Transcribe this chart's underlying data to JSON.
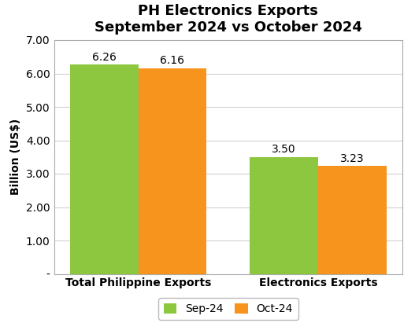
{
  "title": "PH Electronics Exports\nSeptember 2024 vs October 2024",
  "categories": [
    "Total Philippine Exports",
    "Electronics Exports"
  ],
  "series": [
    {
      "label": "Sep-24",
      "values": [
        6.26,
        3.5
      ],
      "color": "#8DC63F"
    },
    {
      "label": "Oct-24",
      "values": [
        6.16,
        3.23
      ],
      "color": "#F7941D"
    }
  ],
  "ylabel": "Billion (US$)",
  "ylim": [
    0,
    7.0
  ],
  "yticks": [
    0,
    1.0,
    2.0,
    3.0,
    4.0,
    5.0,
    6.0,
    7.0
  ],
  "ytick_labels": [
    "-",
    "1.00",
    "2.00",
    "3.00",
    "4.00",
    "5.00",
    "6.00",
    "7.00"
  ],
  "bar_width": 0.38,
  "title_fontsize": 13,
  "label_fontsize": 10,
  "tick_fontsize": 10,
  "legend_fontsize": 10,
  "value_fontsize": 10,
  "background_color": "#ffffff",
  "grid_color": "#d0d0d0",
  "border_color": "#aaaaaa"
}
